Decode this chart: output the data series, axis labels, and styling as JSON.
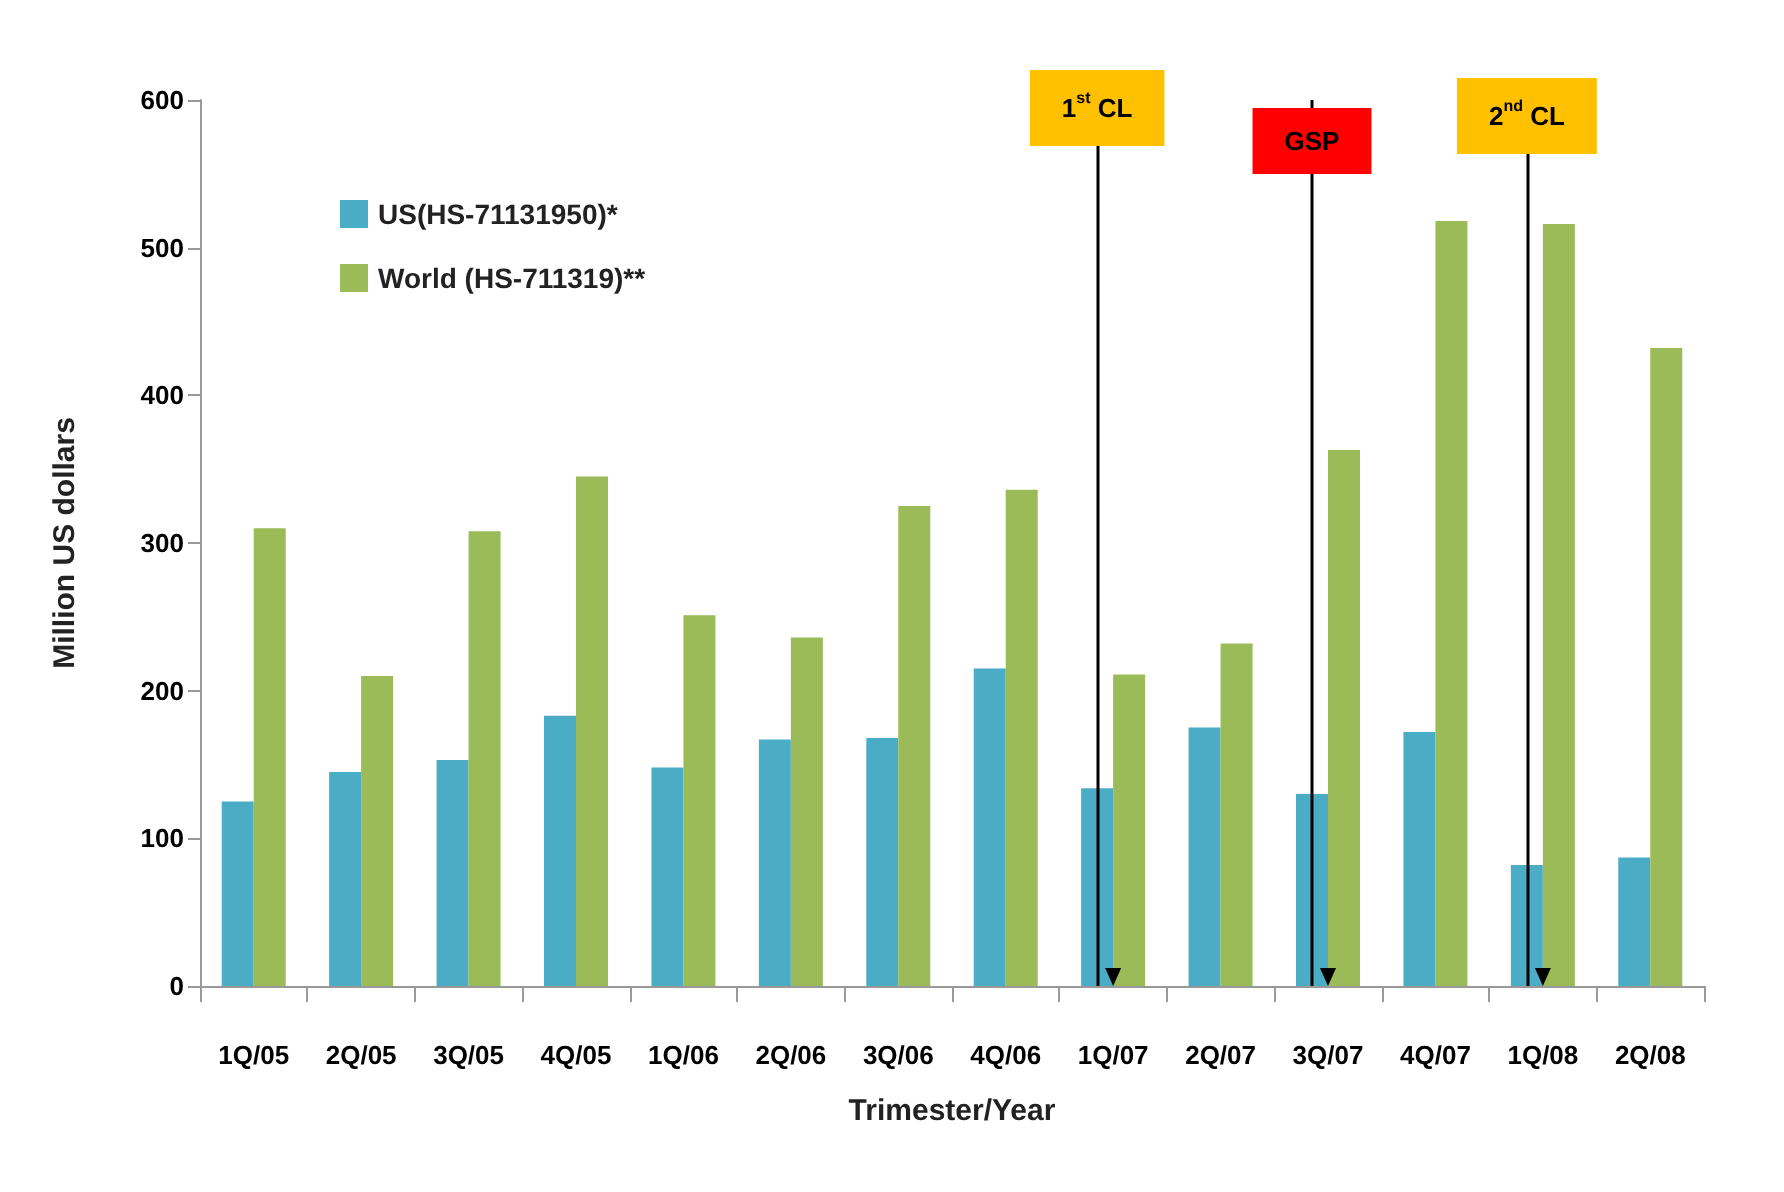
{
  "chart_data": {
    "type": "bar",
    "xlabel": "Trimester/Year",
    "ylabel": "Million US dollars",
    "categories": [
      "1Q/05",
      "2Q/05",
      "3Q/05",
      "4Q/05",
      "1Q/06",
      "2Q/06",
      "3Q/06",
      "4Q/06",
      "1Q/07",
      "2Q/07",
      "3Q/07",
      "4Q/07",
      "1Q/08",
      "2Q/08"
    ],
    "series": [
      {
        "name": "US(HS-71131950)*",
        "color": "#4bacc6",
        "values": [
          125,
          145,
          153,
          183,
          148,
          167,
          168,
          215,
          134,
          175,
          130,
          172,
          82,
          87
        ]
      },
      {
        "name": "World (HS-711319)**",
        "color": "#9bbb59",
        "values": [
          310,
          210,
          308,
          345,
          251,
          236,
          325,
          336,
          211,
          232,
          363,
          518,
          516,
          432
        ]
      }
    ],
    "ylim": [
      0,
      600
    ],
    "yticks": [
      0,
      100,
      200,
      300,
      400,
      500,
      600
    ],
    "grid": false,
    "legend": "top left",
    "ref_lines": [
      {
        "axis": "x",
        "value": "1Q/07",
        "label": "1$^{st}$ CL",
        "color": "#000000"
      },
      {
        "axis": "x",
        "value": "3Q/07",
        "label": "GSP",
        "color": "#000000"
      },
      {
        "axis": "x",
        "value": "1Q/08",
        "label": "2$^{nd}$ CL",
        "color": "#000000"
      }
    ]
  }
}
